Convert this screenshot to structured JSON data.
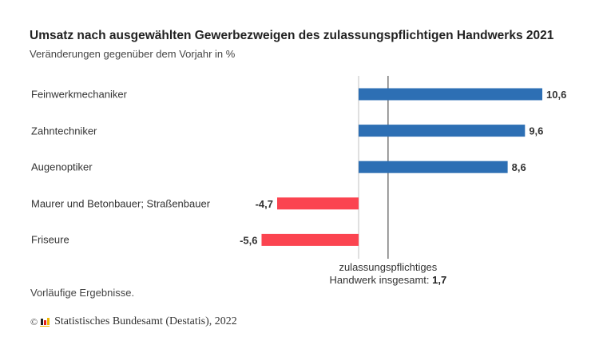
{
  "chart_data": {
    "type": "bar",
    "orientation": "horizontal",
    "title": "Umsatz nach ausgewählten Gewerbezweigen des zulassungspflichtigen Handwerks 2021",
    "subtitle": "Veränderungen gegenüber dem Vorjahr in %",
    "categories": [
      "Feinwerkmechaniker",
      "Zahntechniker",
      "Augenoptiker",
      "Maurer und Betonbauer; Straßenbauer",
      "Friseure"
    ],
    "values": [
      10.6,
      9.6,
      8.6,
      -4.7,
      -5.6
    ],
    "value_labels": [
      "10,6",
      "9,6",
      "8,6",
      "-4,7",
      "-5,6"
    ],
    "colors": {
      "positive": "#2d6fb4",
      "negative": "#fb4450",
      "zero_line": "#cccccc",
      "reference_line": "#555555"
    },
    "reference": {
      "value": 1.7,
      "label_line1": "zulassungspflichtiges",
      "label_line2": "Handwerk insgesamt:",
      "value_label": "1,7"
    },
    "xlim": [
      -5.6,
      10.6
    ],
    "grid": false,
    "legend": "none"
  },
  "footer": {
    "note": "Vorläufige Ergebnisse.",
    "copyright_symbol": "©",
    "source": "Statistisches Bundesamt (Destatis), 2022"
  }
}
